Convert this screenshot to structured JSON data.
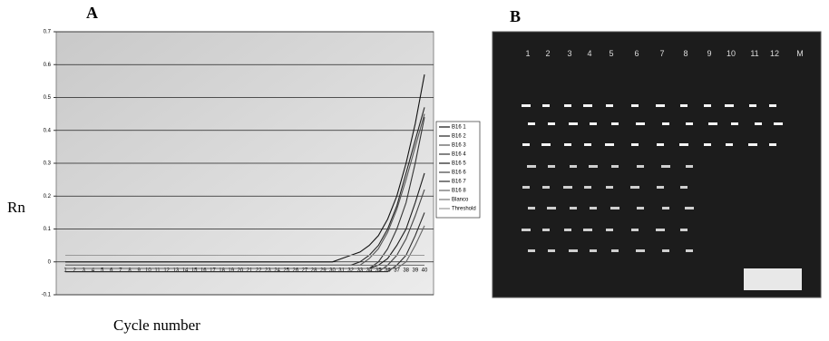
{
  "chart_data": {
    "type": "line",
    "panel_label": "A",
    "y_label": "Rn",
    "x_label": "Cycle number",
    "categories": [
      "1",
      "2",
      "3",
      "4",
      "5",
      "6",
      "7",
      "8",
      "9",
      "10",
      "11",
      "12",
      "13",
      "14",
      "15",
      "16",
      "17",
      "18",
      "19",
      "20",
      "21",
      "22",
      "23",
      "24",
      "25",
      "26",
      "27",
      "28",
      "29",
      "30",
      "31",
      "32",
      "33",
      "34",
      "35",
      "36",
      "37",
      "38",
      "39",
      "40"
    ],
    "ylim": [
      -0.1,
      0.7
    ],
    "yticks": [
      -0.1,
      0,
      0.1,
      0.2,
      0.3,
      0.4,
      0.5,
      0.6,
      0.7
    ],
    "grid": true,
    "legend": "right",
    "series": [
      {
        "name": "B16 1",
        "color": "#111111",
        "values": [
          0,
          0,
          0,
          0,
          0,
          0,
          0,
          0,
          0,
          0,
          0,
          0,
          0,
          0,
          0,
          0,
          0,
          0,
          0,
          0,
          0,
          0,
          0,
          0,
          0,
          0,
          0,
          0,
          0,
          0,
          0.01,
          0.02,
          0.03,
          0.05,
          0.08,
          0.13,
          0.2,
          0.3,
          0.42,
          0.57
        ]
      },
      {
        "name": "B16 2",
        "color": "#222222",
        "values": [
          -0.01,
          -0.01,
          -0.01,
          -0.01,
          -0.01,
          -0.01,
          -0.01,
          -0.01,
          -0.01,
          -0.01,
          -0.01,
          -0.01,
          -0.01,
          -0.01,
          -0.01,
          -0.01,
          -0.01,
          -0.01,
          -0.01,
          -0.01,
          -0.01,
          -0.01,
          -0.01,
          -0.01,
          -0.01,
          -0.01,
          -0.01,
          -0.01,
          -0.01,
          -0.01,
          -0.01,
          -0.01,
          0,
          0.02,
          0.05,
          0.1,
          0.17,
          0.27,
          0.37,
          0.47
        ]
      },
      {
        "name": "B16 3",
        "color": "#555555",
        "values": [
          -0.01,
          -0.01,
          -0.01,
          -0.01,
          -0.01,
          -0.01,
          -0.01,
          -0.01,
          -0.01,
          -0.01,
          -0.01,
          -0.01,
          -0.01,
          -0.01,
          -0.01,
          -0.01,
          -0.01,
          -0.01,
          -0.01,
          -0.01,
          -0.01,
          -0.01,
          -0.01,
          -0.01,
          -0.01,
          -0.01,
          -0.01,
          -0.01,
          -0.01,
          -0.01,
          -0.01,
          -0.01,
          -0.01,
          0.01,
          0.04,
          0.09,
          0.16,
          0.25,
          0.35,
          0.45
        ]
      },
      {
        "name": "B16 4",
        "color": "#333333",
        "values": [
          -0.02,
          -0.02,
          -0.02,
          -0.02,
          -0.02,
          -0.02,
          -0.02,
          -0.02,
          -0.02,
          -0.02,
          -0.02,
          -0.02,
          -0.02,
          -0.02,
          -0.02,
          -0.02,
          -0.02,
          -0.02,
          -0.02,
          -0.02,
          -0.02,
          -0.02,
          -0.02,
          -0.02,
          -0.02,
          -0.02,
          -0.02,
          -0.02,
          -0.02,
          -0.02,
          -0.02,
          -0.02,
          -0.02,
          -0.02,
          0,
          0.04,
          0.1,
          0.18,
          0.3,
          0.44
        ]
      },
      {
        "name": "B16 5",
        "color": "#1a1a1a",
        "values": [
          -0.02,
          -0.02,
          -0.02,
          -0.02,
          -0.02,
          -0.02,
          -0.02,
          -0.02,
          -0.02,
          -0.02,
          -0.02,
          -0.02,
          -0.02,
          -0.02,
          -0.02,
          -0.02,
          -0.02,
          -0.02,
          -0.02,
          -0.02,
          -0.02,
          -0.02,
          -0.02,
          -0.02,
          -0.02,
          -0.02,
          -0.02,
          -0.02,
          -0.02,
          -0.02,
          -0.02,
          -0.02,
          -0.02,
          -0.02,
          -0.01,
          0.01,
          0.05,
          0.1,
          0.18,
          0.27
        ]
      },
      {
        "name": "B16 6",
        "color": "#444444",
        "values": [
          -0.03,
          -0.03,
          -0.03,
          -0.03,
          -0.03,
          -0.03,
          -0.03,
          -0.03,
          -0.03,
          -0.03,
          -0.03,
          -0.03,
          -0.03,
          -0.03,
          -0.03,
          -0.03,
          -0.03,
          -0.03,
          -0.03,
          -0.03,
          -0.03,
          -0.03,
          -0.03,
          -0.03,
          -0.03,
          -0.03,
          -0.03,
          -0.03,
          -0.03,
          -0.03,
          -0.03,
          -0.03,
          -0.03,
          -0.03,
          -0.03,
          -0.01,
          0.02,
          0.07,
          0.14,
          0.22
        ]
      },
      {
        "name": "B16 7",
        "color": "#2b2b2b",
        "values": [
          -0.03,
          -0.03,
          -0.03,
          -0.03,
          -0.03,
          -0.03,
          -0.03,
          -0.03,
          -0.03,
          -0.03,
          -0.03,
          -0.03,
          -0.03,
          -0.03,
          -0.03,
          -0.03,
          -0.03,
          -0.03,
          -0.03,
          -0.03,
          -0.03,
          -0.03,
          -0.03,
          -0.03,
          -0.03,
          -0.03,
          -0.03,
          -0.03,
          -0.03,
          -0.03,
          -0.03,
          -0.03,
          -0.03,
          -0.03,
          -0.03,
          -0.03,
          -0.01,
          0.02,
          0.08,
          0.15
        ]
      },
      {
        "name": "B16 8",
        "color": "#666666",
        "values": [
          -0.02,
          -0.02,
          -0.02,
          -0.02,
          -0.02,
          -0.02,
          -0.02,
          -0.02,
          -0.02,
          -0.02,
          -0.02,
          -0.02,
          -0.02,
          -0.02,
          -0.02,
          -0.02,
          -0.02,
          -0.02,
          -0.02,
          -0.02,
          -0.02,
          -0.02,
          -0.02,
          -0.02,
          -0.02,
          -0.02,
          -0.02,
          -0.02,
          -0.02,
          -0.02,
          -0.02,
          -0.02,
          -0.02,
          -0.02,
          -0.02,
          -0.02,
          -0.02,
          0,
          0.05,
          0.11
        ]
      },
      {
        "name": "Blanco",
        "color": "#777777",
        "values": [
          -0.01,
          -0.01,
          -0.01,
          -0.01,
          -0.01,
          -0.01,
          -0.01,
          -0.01,
          -0.01,
          -0.01,
          -0.01,
          -0.01,
          -0.01,
          -0.01,
          -0.01,
          -0.01,
          -0.01,
          -0.01,
          -0.01,
          -0.01,
          -0.01,
          -0.01,
          -0.01,
          -0.01,
          -0.01,
          -0.01,
          -0.01,
          -0.01,
          -0.01,
          -0.01,
          -0.01,
          -0.01,
          -0.01,
          -0.01,
          -0.01,
          -0.01,
          -0.01,
          -0.01,
          -0.01,
          -0.01
        ]
      },
      {
        "name": "Threshold",
        "color": "#999999",
        "values": [
          0.02,
          0.02,
          0.02,
          0.02,
          0.02,
          0.02,
          0.02,
          0.02,
          0.02,
          0.02,
          0.02,
          0.02,
          0.02,
          0.02,
          0.02,
          0.02,
          0.02,
          0.02,
          0.02,
          0.02,
          0.02,
          0.02,
          0.02,
          0.02,
          0.02,
          0.02,
          0.02,
          0.02,
          0.02,
          0.02,
          0.02,
          0.02,
          0.02,
          0.02,
          0.02,
          0.02,
          0.02,
          0.02,
          0.02,
          0.02
        ]
      }
    ]
  },
  "gel": {
    "panel_label": "B",
    "lanes": [
      "1",
      "2",
      "3",
      "4",
      "5",
      "6",
      "7",
      "8",
      "9",
      "10",
      "11",
      "12",
      "M"
    ]
  }
}
